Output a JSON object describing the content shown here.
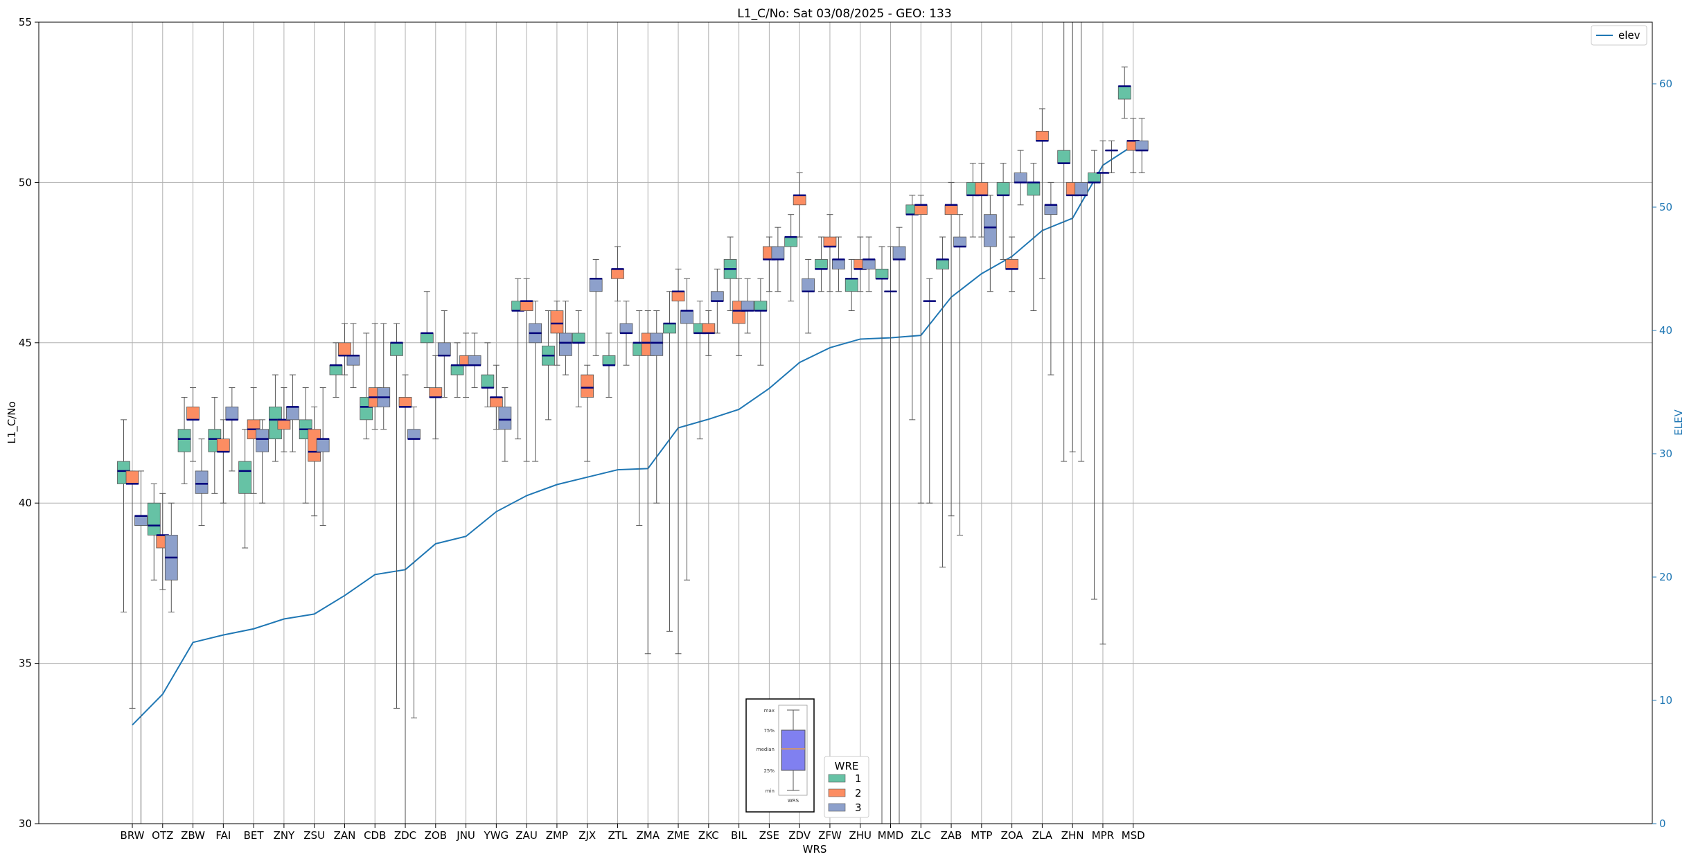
{
  "chart_data": {
    "type": "box",
    "title": "L1_C/No: Sat 03/08/2025 - GEO: 133",
    "xlabel": "WRS",
    "ylabel": "L1_C/No",
    "y2label": "ELEV",
    "ylim": [
      30,
      55
    ],
    "y2lim": [
      0,
      65
    ],
    "yticks": [
      30,
      35,
      40,
      45,
      50,
      55
    ],
    "y2ticks": [
      0,
      10,
      20,
      30,
      40,
      50,
      60
    ],
    "grid": true,
    "categories": [
      "BRW",
      "OTZ",
      "ZBW",
      "FAI",
      "BET",
      "ZNY",
      "ZSU",
      "ZAN",
      "CDB",
      "ZDC",
      "ZOB",
      "JNU",
      "YWG",
      "ZAU",
      "ZMP",
      "ZJX",
      "ZTL",
      "ZMA",
      "ZME",
      "ZKC",
      "BIL",
      "ZSE",
      "ZDV",
      "ZFW",
      "ZHU",
      "MMD",
      "ZLC",
      "ZAB",
      "MTP",
      "ZOA",
      "ZLA",
      "ZHN",
      "MPR",
      "MSD"
    ],
    "elev_legend": "elev",
    "elev": [
      8.0,
      10.5,
      14.7,
      15.3,
      15.8,
      16.6,
      17.0,
      18.5,
      20.2,
      20.6,
      22.7,
      23.3,
      25.3,
      26.6,
      27.5,
      28.1,
      28.7,
      28.8,
      32.1,
      32.8,
      33.6,
      35.3,
      37.4,
      38.6,
      39.3,
      39.4,
      39.6,
      42.7,
      44.6,
      46.0,
      48.1,
      49.1,
      53.4,
      55.0
    ],
    "series_legend_title": "WRE",
    "series": [
      {
        "name": "1",
        "color": "#66c2a5",
        "boxes": [
          [
            36.6,
            40.6,
            41.0,
            41.3,
            42.6
          ],
          [
            37.6,
            39.0,
            39.3,
            40.0,
            40.6
          ],
          [
            40.6,
            41.6,
            42.0,
            42.3,
            43.3
          ],
          [
            40.3,
            41.6,
            42.0,
            42.3,
            43.3
          ],
          [
            38.6,
            40.3,
            41.0,
            41.3,
            42.3
          ],
          [
            41.3,
            42.0,
            42.6,
            43.0,
            44.0
          ],
          [
            40.0,
            42.0,
            42.3,
            42.6,
            43.6
          ],
          [
            43.3,
            44.0,
            44.3,
            44.3,
            45.0
          ],
          [
            42.0,
            42.6,
            43.0,
            43.3,
            45.3
          ],
          [
            33.6,
            44.6,
            45.0,
            45.0,
            45.6
          ],
          [
            43.6,
            45.0,
            45.3,
            45.3,
            46.6
          ],
          [
            43.3,
            44.0,
            44.3,
            44.3,
            45.0
          ],
          [
            43.0,
            43.6,
            43.6,
            44.0,
            45.0
          ],
          [
            42.0,
            46.0,
            46.0,
            46.3,
            47.0
          ],
          [
            42.6,
            44.3,
            44.6,
            44.9,
            46.0
          ],
          [
            43.0,
            45.0,
            45.0,
            45.3,
            46.0
          ],
          [
            43.3,
            44.3,
            44.3,
            44.6,
            45.3
          ],
          [
            39.3,
            44.6,
            45.0,
            45.0,
            46.0
          ],
          [
            36.0,
            45.3,
            45.6,
            45.6,
            46.6
          ],
          [
            42.0,
            45.3,
            45.3,
            45.6,
            46.3
          ],
          [
            46.0,
            47.0,
            47.3,
            47.6,
            48.3
          ],
          [
            44.3,
            46.0,
            46.0,
            46.3,
            47.0
          ],
          [
            46.3,
            48.0,
            48.3,
            48.3,
            49.0
          ],
          [
            46.6,
            47.3,
            47.3,
            47.6,
            48.3
          ],
          [
            46.0,
            46.6,
            47.0,
            47.0,
            47.6
          ],
          [
            30.0,
            47.0,
            47.0,
            47.3,
            48.0
          ],
          [
            42.6,
            49.0,
            49.0,
            49.3,
            49.6
          ],
          [
            38.0,
            47.3,
            47.6,
            47.6,
            48.3
          ],
          [
            48.3,
            49.6,
            49.6,
            50.0,
            50.6
          ],
          [
            47.6,
            49.6,
            49.6,
            50.0,
            50.6
          ],
          [
            46.0,
            49.6,
            50.0,
            50.0,
            50.6
          ],
          [
            41.3,
            50.6,
            50.6,
            51.0,
            55.0
          ],
          [
            37.0,
            50.0,
            50.0,
            50.3,
            51.0
          ],
          [
            52.0,
            52.6,
            53.0,
            53.0,
            53.6
          ]
        ]
      },
      {
        "name": "2",
        "color": "#fc8d62",
        "boxes": [
          [
            33.6,
            40.6,
            40.6,
            41.0,
            41.0
          ],
          [
            37.3,
            38.6,
            39.0,
            39.0,
            40.3
          ],
          [
            41.3,
            42.6,
            42.6,
            43.0,
            43.6
          ],
          [
            40.0,
            41.6,
            41.6,
            42.0,
            42.6
          ],
          [
            40.3,
            42.0,
            42.3,
            42.6,
            43.6
          ],
          [
            41.6,
            42.3,
            42.6,
            42.6,
            43.6
          ],
          [
            39.6,
            41.3,
            41.6,
            42.3,
            43.0
          ],
          [
            44.0,
            44.6,
            44.6,
            45.0,
            45.6
          ],
          [
            42.3,
            43.0,
            43.3,
            43.6,
            45.6
          ],
          [
            30.0,
            43.0,
            43.0,
            43.3,
            44.0
          ],
          [
            42.0,
            43.3,
            43.3,
            43.6,
            44.6
          ],
          [
            43.3,
            44.3,
            44.3,
            44.6,
            45.3
          ],
          [
            42.3,
            43.0,
            43.3,
            43.3,
            44.3
          ],
          [
            41.3,
            46.0,
            46.3,
            46.3,
            47.0
          ],
          [
            44.3,
            45.3,
            45.6,
            46.0,
            46.3
          ],
          [
            41.3,
            43.3,
            43.6,
            44.0,
            44.3
          ],
          [
            46.3,
            47.0,
            47.3,
            47.3,
            48.0
          ],
          [
            35.3,
            44.6,
            45.0,
            45.3,
            46.0
          ],
          [
            35.3,
            46.3,
            46.6,
            46.6,
            47.3
          ],
          [
            44.6,
            45.3,
            45.3,
            45.6,
            46.0
          ],
          [
            44.6,
            45.6,
            46.0,
            46.3,
            47.0
          ],
          [
            46.6,
            47.6,
            47.6,
            48.0,
            48.3
          ],
          [
            48.3,
            49.3,
            49.6,
            49.6,
            50.3
          ],
          [
            46.6,
            48.0,
            48.0,
            48.3,
            49.0
          ],
          [
            46.6,
            47.3,
            47.3,
            47.6,
            48.3
          ],
          [
            30.0,
            46.6,
            46.6,
            46.6,
            48.0
          ],
          [
            40.0,
            49.0,
            49.3,
            49.3,
            49.6
          ],
          [
            39.6,
            49.0,
            49.3,
            49.3,
            50.0
          ],
          [
            48.3,
            49.6,
            49.6,
            50.0,
            50.6
          ],
          [
            46.6,
            47.3,
            47.3,
            47.6,
            48.3
          ],
          [
            47.0,
            51.3,
            51.3,
            51.6,
            52.3
          ],
          [
            41.6,
            49.6,
            49.6,
            50.0,
            55.0
          ],
          [
            35.6,
            50.3,
            50.3,
            50.3,
            51.3
          ],
          [
            50.3,
            51.0,
            51.3,
            51.3,
            52.0
          ]
        ]
      },
      {
        "name": "3",
        "color": "#8da0cb",
        "boxes": [
          [
            30.0,
            39.3,
            39.6,
            39.6,
            41.0
          ],
          [
            36.6,
            37.6,
            38.3,
            39.0,
            40.0
          ],
          [
            39.3,
            40.3,
            40.6,
            41.0,
            42.0
          ],
          [
            41.0,
            42.6,
            42.6,
            43.0,
            43.6
          ],
          [
            40.0,
            41.6,
            42.0,
            42.3,
            42.6
          ],
          [
            41.6,
            42.6,
            43.0,
            43.0,
            44.0
          ],
          [
            39.3,
            41.6,
            42.0,
            42.0,
            43.6
          ],
          [
            43.6,
            44.3,
            44.6,
            44.6,
            45.6
          ],
          [
            42.3,
            43.0,
            43.3,
            43.6,
            45.6
          ],
          [
            33.3,
            42.0,
            42.0,
            42.3,
            43.0
          ],
          [
            43.3,
            44.6,
            44.6,
            45.0,
            46.0
          ],
          [
            43.6,
            44.3,
            44.3,
            44.6,
            45.3
          ],
          [
            41.3,
            42.3,
            42.6,
            43.0,
            43.6
          ],
          [
            41.3,
            45.0,
            45.3,
            45.6,
            46.3
          ],
          [
            44.0,
            44.6,
            45.0,
            45.3,
            46.3
          ],
          [
            44.6,
            46.6,
            47.0,
            47.0,
            47.6
          ],
          [
            44.3,
            45.3,
            45.3,
            45.6,
            46.3
          ],
          [
            40.0,
            44.6,
            45.0,
            45.3,
            46.0
          ],
          [
            37.6,
            45.6,
            46.0,
            46.0,
            47.0
          ],
          [
            45.3,
            46.3,
            46.3,
            46.6,
            47.3
          ],
          [
            45.3,
            46.0,
            46.0,
            46.3,
            47.0
          ],
          [
            46.6,
            47.6,
            47.6,
            48.0,
            48.6
          ],
          [
            45.3,
            46.6,
            46.6,
            47.0,
            47.6
          ],
          [
            46.6,
            47.3,
            47.6,
            47.6,
            48.3
          ],
          [
            46.6,
            47.3,
            47.6,
            47.6,
            48.3
          ],
          [
            30.0,
            47.6,
            47.6,
            48.0,
            48.6
          ],
          [
            40.0,
            46.3,
            46.3,
            46.3,
            47.0
          ],
          [
            39.0,
            48.0,
            48.0,
            48.3,
            49.0
          ],
          [
            46.6,
            48.0,
            48.6,
            49.0,
            49.6
          ],
          [
            49.3,
            50.0,
            50.0,
            50.3,
            51.0
          ],
          [
            44.0,
            49.0,
            49.3,
            49.3,
            50.0
          ],
          [
            41.3,
            49.6,
            49.6,
            50.0,
            55.0
          ],
          [
            50.3,
            51.0,
            51.0,
            51.0,
            51.3
          ],
          [
            50.3,
            51.0,
            51.0,
            51.3,
            52.0
          ]
        ]
      }
    ],
    "inset": {
      "labels": [
        "max",
        "75%",
        "median",
        "25%",
        "min"
      ],
      "caption": "WRS"
    }
  }
}
